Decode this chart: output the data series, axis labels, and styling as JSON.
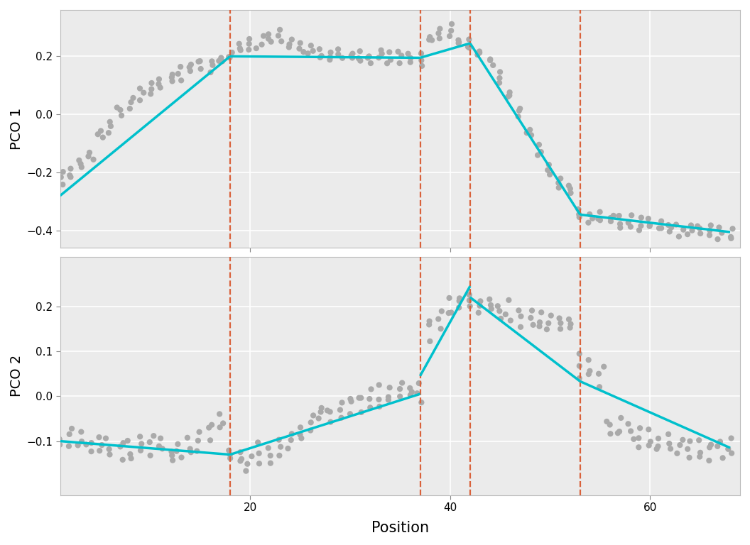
{
  "breakpoints": [
    18,
    37,
    42,
    53
  ],
  "pco1_segments": [
    {
      "x": [
        1,
        18
      ],
      "y": [
        -0.28,
        0.2
      ]
    },
    {
      "x": [
        18,
        37
      ],
      "y": [
        0.2,
        0.195
      ]
    },
    {
      "x": [
        37,
        42
      ],
      "y": [
        0.195,
        0.245
      ]
    },
    {
      "x": [
        42,
        53
      ],
      "y": [
        0.245,
        -0.345
      ]
    },
    {
      "x": [
        53,
        68
      ],
      "y": [
        -0.345,
        -0.405
      ]
    }
  ],
  "pco2_segments": [
    {
      "x": [
        1,
        18
      ],
      "y": [
        -0.1,
        -0.13
      ]
    },
    {
      "x": [
        18,
        37
      ],
      "y": [
        -0.13,
        0.005
      ]
    },
    {
      "x": [
        37,
        42
      ],
      "y": [
        0.045,
        0.245
      ]
    },
    {
      "x": [
        42,
        53
      ],
      "y": [
        0.22,
        0.033
      ]
    },
    {
      "x": [
        53,
        68
      ],
      "y": [
        0.033,
        -0.115
      ]
    }
  ],
  "pco1_ylim": [
    -0.46,
    0.36
  ],
  "pco2_ylim": [
    -0.22,
    0.31
  ],
  "pco1_yticks": [
    -0.4,
    -0.2,
    0.0,
    0.2
  ],
  "pco2_yticks": [
    -0.1,
    0.0,
    0.1,
    0.2
  ],
  "xlim": [
    1,
    69
  ],
  "xticks": [
    20,
    40,
    60
  ],
  "xlabel": "Position",
  "pco1_ylabel": "PCO 1",
  "pco2_ylabel": "PCO 2",
  "dot_color": "#aaaaaa",
  "line_color": "#00c0cc",
  "vline_color": "#d9623b",
  "background_color": "#ebebeb",
  "grid_color": "#ffffff",
  "dot_size": 35,
  "line_width": 2.5,
  "vline_lw": 1.6,
  "pco1_scatter_y": [
    -0.22,
    -0.2,
    -0.17,
    -0.14,
    -0.07,
    -0.04,
    0.01,
    0.04,
    0.07,
    0.09,
    0.11,
    0.13,
    0.14,
    0.16,
    0.17,
    0.17,
    0.19,
    0.2,
    0.23,
    0.24,
    0.25,
    0.26,
    0.27,
    0.24,
    0.23,
    0.22,
    0.21,
    0.2,
    0.21,
    0.2,
    0.2,
    0.19,
    0.2,
    0.2,
    0.2,
    0.19,
    0.19,
    0.26,
    0.28,
    0.29,
    0.25,
    0.24,
    0.21,
    0.18,
    0.13,
    0.07,
    0.01,
    -0.06,
    -0.13,
    -0.19,
    -0.24,
    -0.26,
    -0.34,
    -0.35,
    -0.35,
    -0.36,
    -0.37,
    -0.37,
    -0.38,
    -0.38,
    -0.38,
    -0.39,
    -0.4,
    -0.4,
    -0.39,
    -0.4,
    -0.41,
    -0.41
  ],
  "pco2_scatter_y": [
    -0.1,
    -0.09,
    -0.1,
    -0.11,
    -0.11,
    -0.12,
    -0.12,
    -0.12,
    -0.11,
    -0.1,
    -0.11,
    -0.13,
    -0.12,
    -0.11,
    -0.1,
    -0.08,
    -0.06,
    -0.13,
    -0.14,
    -0.15,
    -0.13,
    -0.13,
    -0.11,
    -0.1,
    -0.08,
    -0.06,
    -0.04,
    -0.04,
    -0.03,
    -0.02,
    -0.01,
    0.0,
    0.0,
    0.0,
    0.01,
    0.01,
    0.01,
    0.15,
    0.17,
    0.2,
    0.21,
    0.21,
    0.2,
    0.2,
    0.19,
    0.19,
    0.18,
    0.18,
    0.17,
    0.17,
    0.16,
    0.16,
    0.07,
    0.06,
    0.05,
    -0.07,
    -0.07,
    -0.08,
    -0.09,
    -0.09,
    -0.1,
    -0.1,
    -0.11,
    -0.12,
    -0.12,
    -0.12,
    -0.12,
    -0.12
  ]
}
